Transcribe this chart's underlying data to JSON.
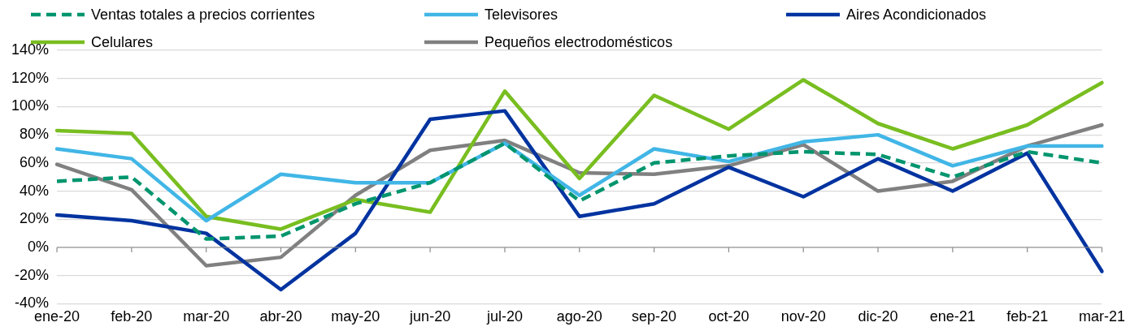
{
  "chart_data": {
    "type": "line",
    "categories": [
      "ene-20",
      "feb-20",
      "mar-20",
      "abr-20",
      "may-20",
      "jun-20",
      "jul-20",
      "ago-20",
      "sep-20",
      "oct-20",
      "nov-20",
      "dic-20",
      "ene-21",
      "feb-21",
      "mar-21"
    ],
    "series": [
      {
        "name": "Ventas totales a precios corrientes",
        "color": "#00956e",
        "line_style": "dashed",
        "values": [
          47,
          50,
          6,
          8,
          31,
          46,
          74,
          33,
          60,
          65,
          68,
          66,
          50,
          68,
          60
        ]
      },
      {
        "name": "Televisores",
        "color": "#41b6e6",
        "values": [
          70,
          63,
          19,
          52,
          46,
          46,
          74,
          37,
          70,
          61,
          75,
          80,
          58,
          72,
          72
        ]
      },
      {
        "name": "Aires Acondicionados",
        "color": "#0033a0",
        "values": [
          23,
          19,
          10,
          -30,
          10,
          91,
          97,
          22,
          31,
          57,
          36,
          63,
          40,
          67,
          -17
        ]
      },
      {
        "name": "Celulares",
        "color": "#78be20",
        "values": [
          83,
          81,
          22,
          13,
          34,
          25,
          111,
          49,
          108,
          84,
          119,
          88,
          70,
          87,
          117
        ]
      },
      {
        "name": "Pequeños electrodomésticos",
        "color": "#808080",
        "values": [
          59,
          41,
          -13,
          -7,
          37,
          69,
          76,
          53,
          52,
          58,
          73,
          40,
          47,
          72,
          87
        ]
      }
    ],
    "ylim": [
      -40,
      140
    ],
    "yticks": [
      {
        "value": -40,
        "label": "-40%"
      },
      {
        "value": -20,
        "label": "-20%"
      },
      {
        "value": 0,
        "label": "0%"
      },
      {
        "value": 20,
        "label": "20%"
      },
      {
        "value": 40,
        "label": "40%"
      },
      {
        "value": 60,
        "label": "60%"
      },
      {
        "value": 80,
        "label": "80%"
      },
      {
        "value": 100,
        "label": "100%"
      },
      {
        "value": 120,
        "label": "120%"
      },
      {
        "value": 140,
        "label": "140%"
      }
    ],
    "grid": "y",
    "legend": "top",
    "marker": "none",
    "line_style": "solid"
  }
}
